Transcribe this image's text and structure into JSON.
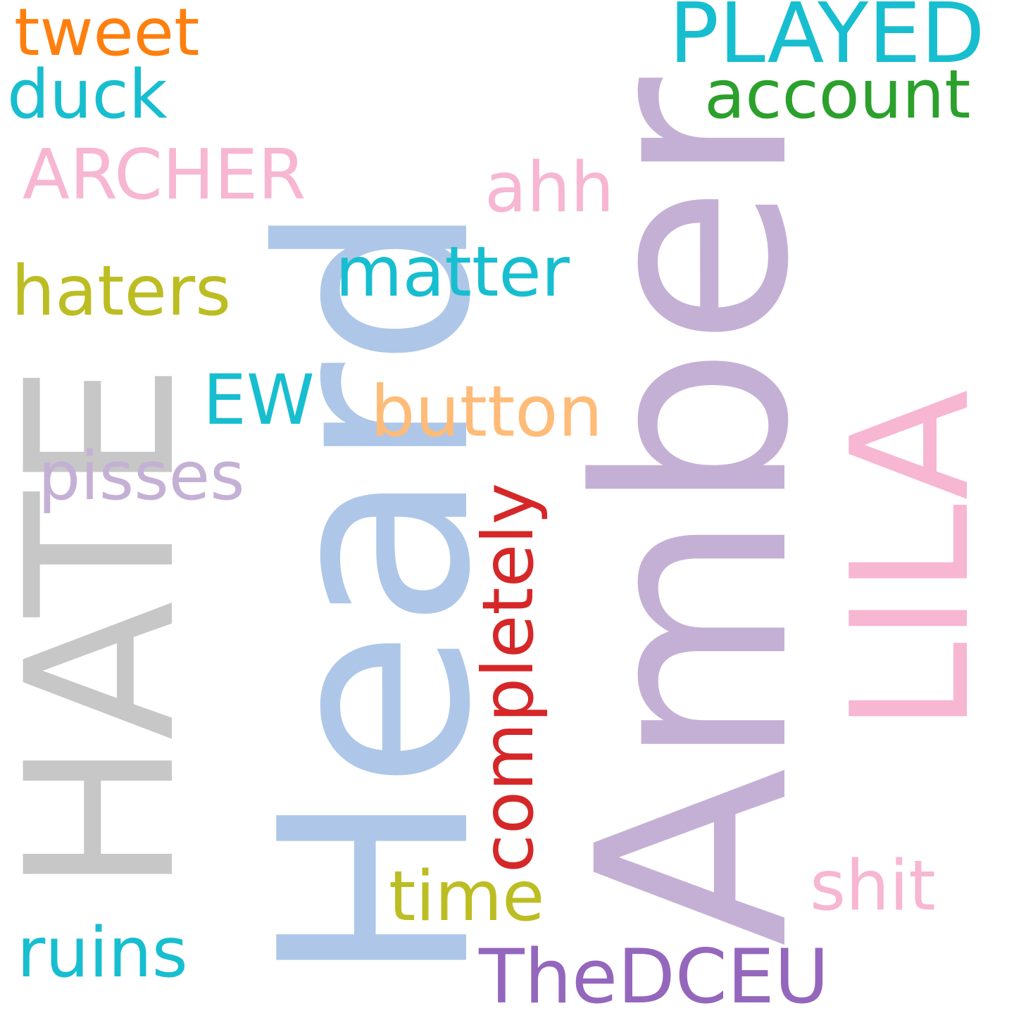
{
  "cloud": {
    "words": [
      {
        "text": "Heard",
        "color": "#aec7e8"
      },
      {
        "text": "Amber",
        "color": "#c5b0d5"
      },
      {
        "text": "HATE",
        "color": "#c7c7c7"
      },
      {
        "text": "LILA",
        "color": "#f7b6d2"
      },
      {
        "text": "PLAYED",
        "color": "#17becf"
      },
      {
        "text": "completely",
        "color": "#d62728"
      },
      {
        "text": "tweet",
        "color": "#ff7f0e"
      },
      {
        "text": "duck",
        "color": "#17becf"
      },
      {
        "text": "account",
        "color": "#2ca02c"
      },
      {
        "text": "ARCHER",
        "color": "#f7b6d2"
      },
      {
        "text": "ahh",
        "color": "#f7b6d2"
      },
      {
        "text": "matter",
        "color": "#17becf"
      },
      {
        "text": "haters",
        "color": "#bcbd22"
      },
      {
        "text": "EW",
        "color": "#17becf"
      },
      {
        "text": "button",
        "color": "#ffbb78"
      },
      {
        "text": "pisses",
        "color": "#c5b0d5"
      },
      {
        "text": "time",
        "color": "#bcbd22"
      },
      {
        "text": "shit",
        "color": "#f7b6d2"
      },
      {
        "text": "ruins",
        "color": "#17becf"
      },
      {
        "text": "TheDCEU",
        "color": "#9467bd"
      }
    ]
  }
}
